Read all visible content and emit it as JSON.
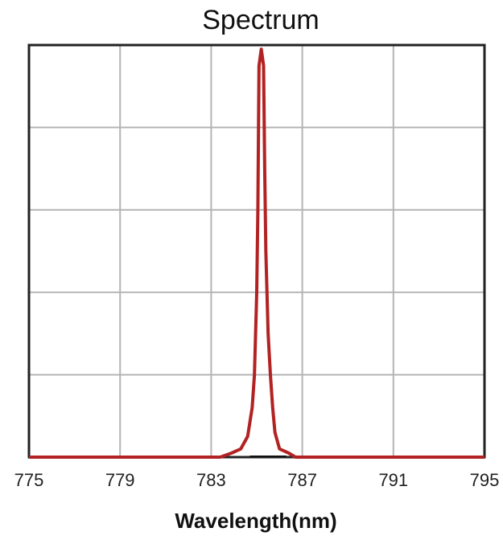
{
  "chart_data": {
    "type": "line",
    "title": "Spectrum",
    "xlabel": "Wavelength(nm)",
    "ylabel": "",
    "xlim": [
      775,
      795
    ],
    "ylim": [
      0,
      1
    ],
    "x_ticks": [
      775,
      779,
      783,
      787,
      791,
      795
    ],
    "x_tick_labels": [
      "775",
      "779",
      "783",
      "787",
      "791",
      "795"
    ],
    "y_gridlines": [
      0.2,
      0.4,
      0.6,
      0.8
    ],
    "grid": true,
    "legend": "none",
    "series": [
      {
        "color": "#b22222",
        "points": [
          [
            775,
            0
          ],
          [
            783.4,
            0
          ],
          [
            783.9,
            0.01
          ],
          [
            784.3,
            0.02
          ],
          [
            784.6,
            0.05
          ],
          [
            784.8,
            0.12
          ],
          [
            784.9,
            0.2
          ],
          [
            785.0,
            0.4
          ],
          [
            785.05,
            0.6
          ],
          [
            785.1,
            0.95
          ],
          [
            785.2,
            0.99
          ],
          [
            785.3,
            0.95
          ],
          [
            785.35,
            0.7
          ],
          [
            785.4,
            0.5
          ],
          [
            785.5,
            0.3
          ],
          [
            785.6,
            0.2
          ],
          [
            785.7,
            0.12
          ],
          [
            785.8,
            0.06
          ],
          [
            786.0,
            0.02
          ],
          [
            786.4,
            0.01
          ],
          [
            786.7,
            0
          ],
          [
            795,
            0
          ]
        ]
      }
    ],
    "baseline_color": "#111111"
  }
}
